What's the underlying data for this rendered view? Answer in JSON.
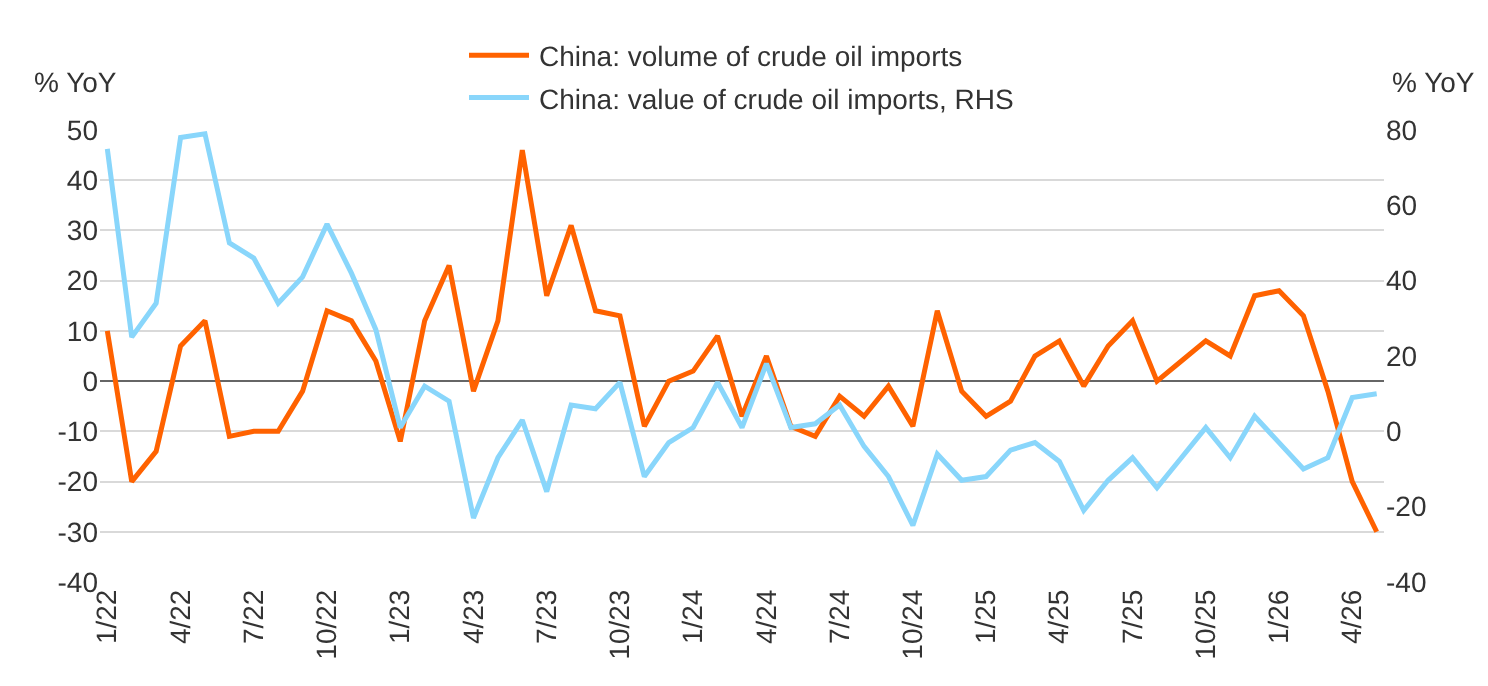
{
  "chart_data": {
    "type": "line",
    "categories": [
      "1/22",
      null,
      null,
      "4/22",
      null,
      null,
      "7/22",
      null,
      null,
      "10/22",
      null,
      null,
      "1/23",
      null,
      null,
      "4/23",
      null,
      null,
      "7/23",
      null,
      null,
      "10/23",
      null,
      null,
      "1/24",
      null,
      null,
      "4/24",
      null,
      null,
      "7/24",
      null,
      null,
      "10/24",
      null,
      null,
      "1/25",
      null,
      null,
      "4/25",
      null,
      null,
      "7/25",
      null,
      null,
      "10/25",
      null,
      null,
      "1/26",
      null,
      null,
      "4/26",
      null
    ],
    "series": [
      {
        "name": "China: volume of crude oil imports",
        "color": "#ff6200",
        "values": [
          10,
          -20,
          -14,
          7,
          12,
          -11,
          -10,
          -10,
          -2,
          14,
          12,
          4,
          -12,
          12,
          23,
          -2,
          12,
          46,
          17,
          31,
          14,
          13,
          -9,
          0,
          2,
          9,
          -7,
          5,
          -9,
          -11,
          -3,
          -7,
          -1,
          -9,
          14,
          -2,
          -7,
          -4,
          5,
          8,
          -1,
          7,
          12,
          0,
          4,
          8,
          5,
          17,
          18,
          13,
          -2,
          -20,
          -30
        ]
      },
      {
        "name": "China: value of crude oil imports, RHS",
        "color": "#89d6fb",
        "axis": "y2",
        "values": [
          75,
          25,
          34,
          78,
          79,
          50,
          46,
          34,
          41,
          55,
          42,
          27,
          1,
          12,
          8,
          -23,
          -7,
          3,
          -16,
          7,
          6,
          13,
          -12,
          -3,
          1,
          13,
          1,
          18,
          1,
          2,
          7,
          -4,
          -12,
          -25,
          -6,
          -13,
          -12,
          -5,
          -3,
          -8,
          -21,
          -13,
          -7,
          -15,
          -7,
          1,
          -7,
          4,
          -3,
          -10,
          -7,
          9,
          10
        ]
      }
    ],
    "ylabel": "% YoY",
    "y2label": "% YoY",
    "ylim": [
      -40,
      50
    ],
    "yticks": [
      50,
      40,
      30,
      20,
      10,
      0,
      -10,
      -20,
      -30,
      -40
    ],
    "y2lim": [
      -40,
      80
    ],
    "y2ticks": [
      80,
      60,
      40,
      20,
      0,
      -20,
      -40
    ],
    "grid": "y",
    "legend": "top",
    "line_style": "solid"
  }
}
